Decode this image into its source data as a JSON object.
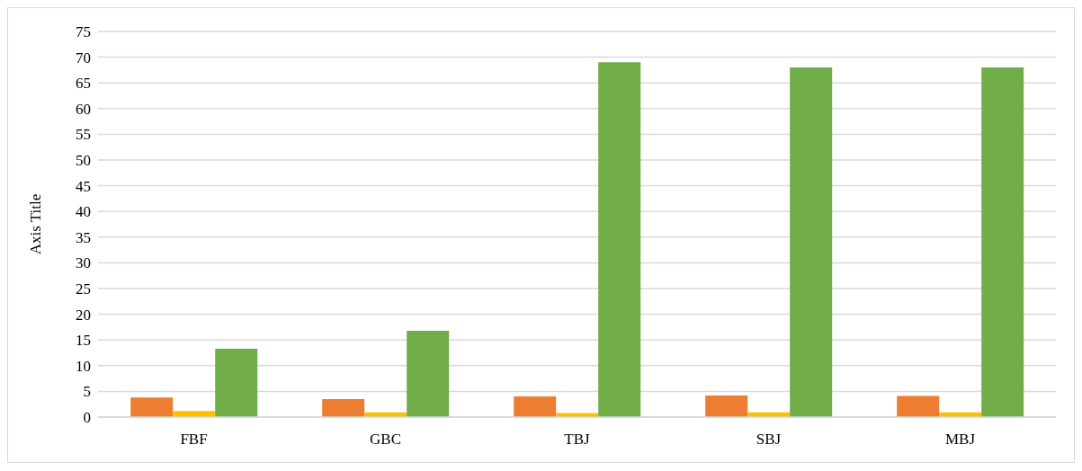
{
  "chart_data": {
    "type": "bar",
    "ylabel": "Axis Title",
    "categories": [
      "FBF",
      "GBC",
      "TBJ",
      "SBJ",
      "MBJ"
    ],
    "series": [
      {
        "color": "#ed7d31",
        "values": [
          3.8,
          3.5,
          4.0,
          4.2,
          4.1
        ]
      },
      {
        "color": "#ffc000",
        "values": [
          1.2,
          0.9,
          0.8,
          0.9,
          0.9
        ]
      },
      {
        "color": "#70ad47",
        "values": [
          13.3,
          16.8,
          69,
          68,
          68
        ]
      }
    ],
    "ylim": [
      0,
      75
    ],
    "yticks": [
      0,
      5,
      10,
      15,
      20,
      25,
      30,
      35,
      40,
      45,
      50,
      55,
      60,
      65,
      70,
      75
    ],
    "grid": "y",
    "legend": false
  }
}
